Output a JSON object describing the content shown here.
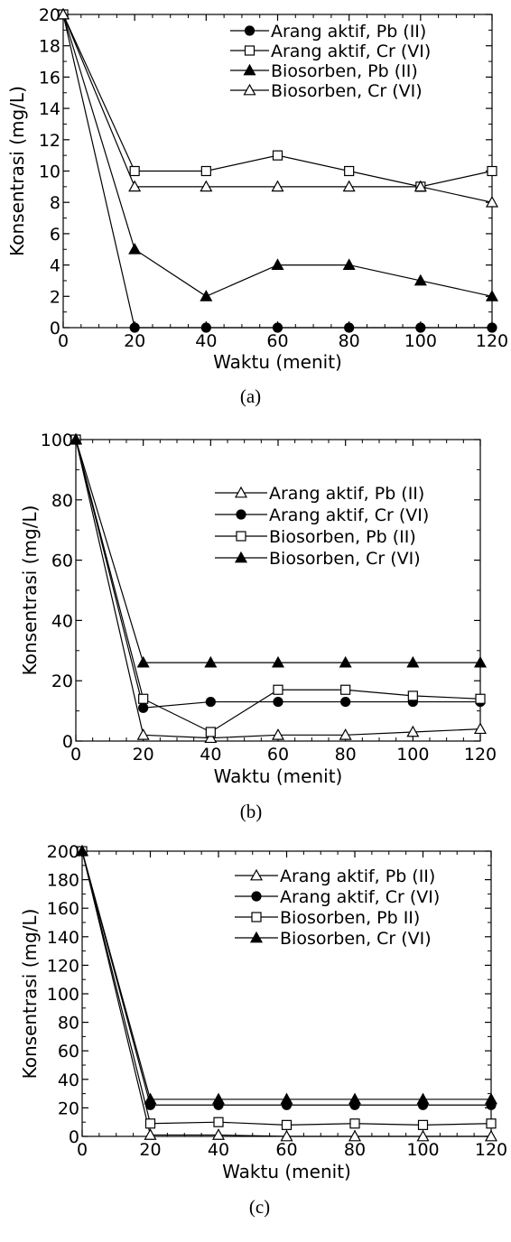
{
  "chart_data": [
    {
      "type": "line",
      "xlabel": "Waktu (menit)",
      "ylabel": "Konsentrasi (mg/L)",
      "caption": "(a)",
      "xlim": [
        0,
        120
      ],
      "ylim": [
        0,
        20
      ],
      "xticks": [
        0,
        20,
        40,
        60,
        80,
        100,
        120
      ],
      "yticks": [
        0,
        2,
        4,
        6,
        8,
        10,
        12,
        14,
        16,
        18,
        20
      ],
      "legend_position": "top-right",
      "x": [
        0,
        20,
        40,
        60,
        80,
        100,
        120
      ],
      "series": [
        {
          "name": "Arang aktif, Pb (II)",
          "marker": "circle-filled",
          "values": [
            20,
            0,
            0,
            0,
            0,
            0,
            0
          ]
        },
        {
          "name": "Arang aktif, Cr (VI)",
          "marker": "square-open",
          "values": [
            20,
            10,
            10,
            11,
            10,
            9,
            10
          ]
        },
        {
          "name": "Biosorben, Pb (II)",
          "marker": "triangle-filled",
          "values": [
            20,
            5,
            2,
            4,
            4,
            3,
            2
          ]
        },
        {
          "name": "Biosorben, Cr (VI)",
          "marker": "triangle-open",
          "values": [
            20,
            9,
            9,
            9,
            9,
            9,
            8
          ]
        }
      ]
    },
    {
      "type": "line",
      "xlabel": "Waktu (menit)",
      "ylabel": "Konsentrasi (mg/L)",
      "caption": "(b)",
      "xlim": [
        0,
        120
      ],
      "ylim": [
        0,
        100
      ],
      "xticks": [
        0,
        20,
        40,
        60,
        80,
        100,
        120
      ],
      "yticks": [
        0,
        20,
        40,
        60,
        80,
        100
      ],
      "legend_position": "top-right",
      "x": [
        0,
        20,
        40,
        60,
        80,
        100,
        120
      ],
      "series": [
        {
          "name": "Arang aktif, Pb (II)",
          "marker": "triangle-open",
          "values": [
            100,
            2,
            1,
            2,
            2,
            3,
            4
          ]
        },
        {
          "name": "Arang aktif, Cr (VI)",
          "marker": "circle-filled",
          "values": [
            100,
            11,
            13,
            13,
            13,
            13,
            13
          ]
        },
        {
          "name": "Biosorben, Pb (II)",
          "marker": "square-open",
          "values": [
            100,
            14,
            3,
            17,
            17,
            15,
            14
          ]
        },
        {
          "name": "Biosorben, Cr (VI)",
          "marker": "triangle-filled",
          "values": [
            100,
            26,
            26,
            26,
            26,
            26,
            26
          ]
        }
      ]
    },
    {
      "type": "line",
      "xlabel": "Waktu (menit)",
      "ylabel": "Konsentrasi (mg/L)",
      "caption": "(c)",
      "xlim": [
        0,
        120
      ],
      "ylim": [
        0,
        200
      ],
      "xticks": [
        0,
        20,
        40,
        60,
        80,
        100,
        120
      ],
      "yticks": [
        0,
        20,
        40,
        60,
        80,
        100,
        120,
        140,
        160,
        180,
        200
      ],
      "legend_position": "top-right",
      "x": [
        0,
        20,
        40,
        60,
        80,
        100,
        120
      ],
      "series": [
        {
          "name": "Arang aktif, Pb (II)",
          "marker": "triangle-open",
          "values": [
            200,
            1,
            1,
            0,
            0,
            0,
            0
          ]
        },
        {
          "name": "Arang aktif, Cr (VI)",
          "marker": "circle-filled",
          "values": [
            200,
            22,
            22,
            22,
            22,
            22,
            22
          ]
        },
        {
          "name": "Biosorben, Pb II)",
          "marker": "square-open",
          "values": [
            200,
            9,
            10,
            8,
            9,
            8,
            9
          ]
        },
        {
          "name": "Biosorben, Cr (VI)",
          "marker": "triangle-filled",
          "values": [
            200,
            26,
            26,
            26,
            26,
            26,
            26
          ]
        }
      ]
    }
  ]
}
